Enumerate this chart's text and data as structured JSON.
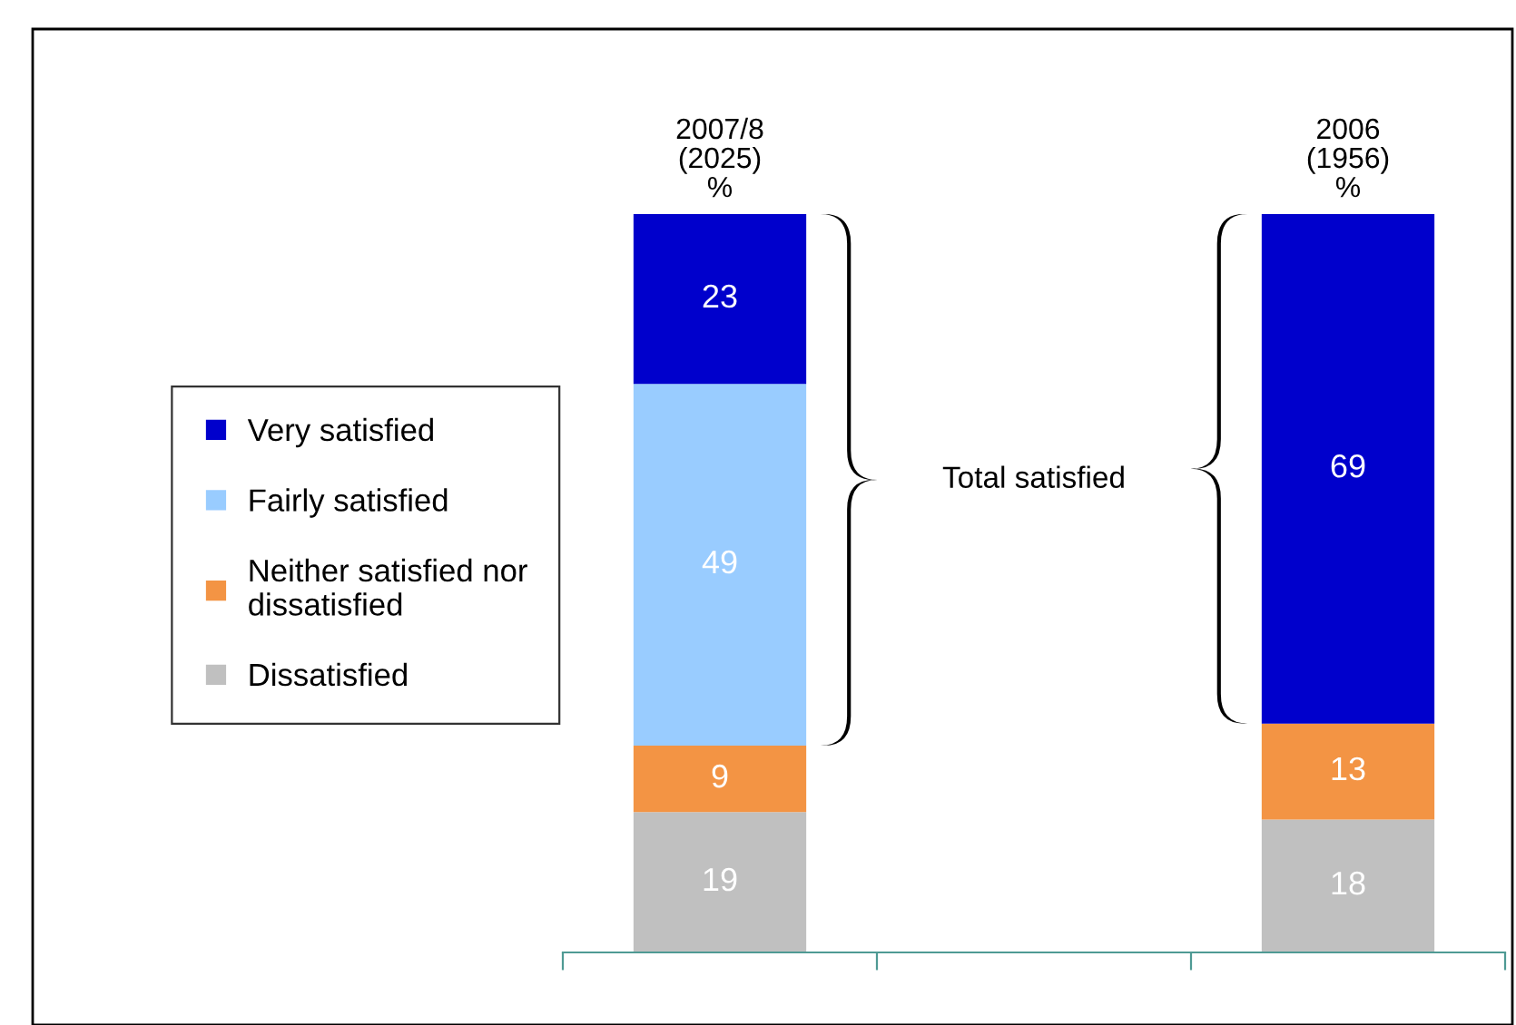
{
  "chart_data": {
    "type": "bar",
    "stacked": true,
    "data_labels": true,
    "legend": "left",
    "grid": false,
    "categories": [
      "2007/8\n(2025)\n%",
      null,
      "2006\n(1956)\n%"
    ],
    "series": [
      {
        "name": "Dissatisfied",
        "color": "#c0c0c0",
        "values": [
          19,
          null,
          18
        ]
      },
      {
        "name": "Neither satisfied nor\ndissatisfied",
        "color": "#f39444",
        "values": [
          9,
          null,
          13
        ]
      },
      {
        "name": "Fairly satisfied",
        "color": "#99ccff",
        "values": [
          49,
          null,
          null
        ]
      },
      {
        "name": "Very satisfied",
        "color": "#0000cc",
        "values": [
          23,
          null,
          69
        ]
      }
    ],
    "annotations": [
      "Total satisfied"
    ]
  }
}
